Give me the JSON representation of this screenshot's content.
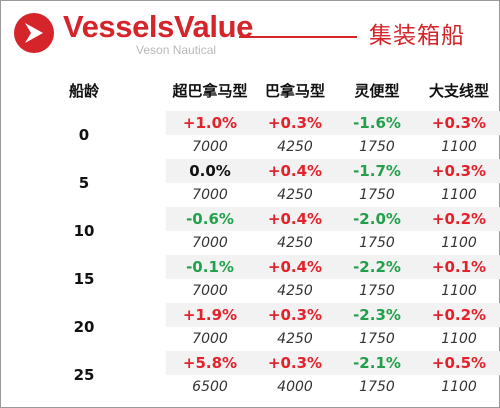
{
  "header": {
    "brand": "VesselsValue",
    "brand_sub": "Veson Nautical",
    "title": "集装箱船"
  },
  "colors": {
    "brand_red": "#d5252b",
    "increase": "#e3222b",
    "decrease": "#22a04b",
    "neutral": "#111111",
    "row_shade": "#f2f2f2"
  },
  "icons": {
    "logo": "vesselsvalue-logo-icon"
  },
  "table": {
    "columns": [
      "船龄",
      "超巴拿马型",
      "巴拿马型",
      "灵便型",
      "大支线型"
    ],
    "rows": [
      {
        "age": "0",
        "changes": [
          "+1.0%",
          "+0.3%",
          "-1.6%",
          "+0.3%"
        ],
        "trend": [
          "up",
          "up",
          "down",
          "up"
        ],
        "values": [
          "7000",
          "4250",
          "1750",
          "1100"
        ]
      },
      {
        "age": "5",
        "changes": [
          "0.0%",
          "+0.4%",
          "-1.7%",
          "+0.3%"
        ],
        "trend": [
          "flat",
          "up",
          "down",
          "up"
        ],
        "values": [
          "7000",
          "4250",
          "1750",
          "1100"
        ]
      },
      {
        "age": "10",
        "changes": [
          "-0.6%",
          "+0.4%",
          "-2.0%",
          "+0.2%"
        ],
        "trend": [
          "down",
          "up",
          "down",
          "up"
        ],
        "values": [
          "7000",
          "4250",
          "1750",
          "1100"
        ]
      },
      {
        "age": "15",
        "changes": [
          "-0.1%",
          "+0.4%",
          "-2.2%",
          "+0.1%"
        ],
        "trend": [
          "down",
          "up",
          "down",
          "up"
        ],
        "values": [
          "7000",
          "4250",
          "1750",
          "1100"
        ]
      },
      {
        "age": "20",
        "changes": [
          "+1.9%",
          "+0.3%",
          "-2.3%",
          "+0.2%"
        ],
        "trend": [
          "up",
          "up",
          "down",
          "up"
        ],
        "values": [
          "7000",
          "4250",
          "1750",
          "1100"
        ]
      },
      {
        "age": "25",
        "changes": [
          "+5.8%",
          "+0.3%",
          "-2.1%",
          "+0.5%"
        ],
        "trend": [
          "up",
          "up",
          "down",
          "up"
        ],
        "values": [
          "6500",
          "4000",
          "1750",
          "1100"
        ]
      }
    ]
  }
}
